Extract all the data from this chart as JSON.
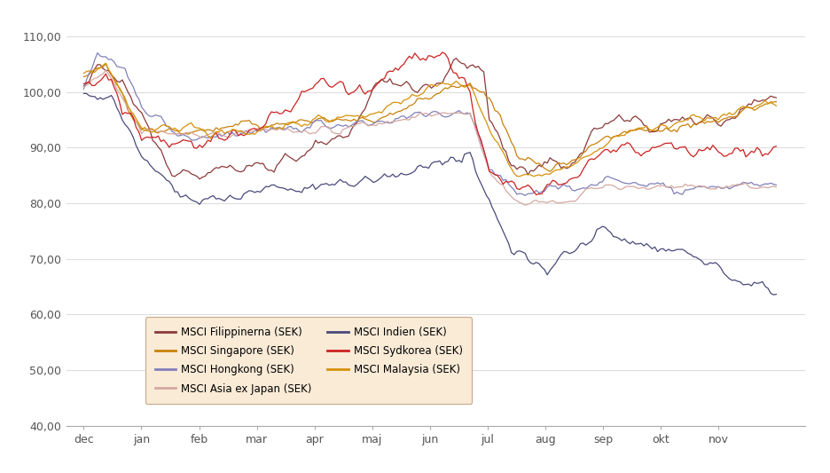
{
  "ylim": [
    40,
    114
  ],
  "yticks": [
    40,
    50,
    60,
    70,
    80,
    90,
    100,
    110
  ],
  "ytick_labels": [
    "40,00",
    "50,00",
    "60,00",
    "70,00",
    "80,00",
    "90,00",
    "100,00",
    "110,00"
  ],
  "months": [
    "dec",
    "jan",
    "feb",
    "mar",
    "apr",
    "maj",
    "jun",
    "jul",
    "aug",
    "sep",
    "okt",
    "nov"
  ],
  "legend_bg": "#FAEBD7",
  "legend_edge": "#C8A888",
  "grid_color": "#DDDDDD",
  "background_color": "#FFFFFF",
  "series": [
    {
      "name": "MSCI Filippinerna (SEK)",
      "color": "#8B3A3A"
    },
    {
      "name": "MSCI Singapore (SEK)",
      "color": "#C8820A"
    },
    {
      "name": "MSCI Hongkong (SEK)",
      "color": "#8080BB"
    },
    {
      "name": "MSCI Asia ex Japan (SEK)",
      "color": "#D4A8A0"
    },
    {
      "name": "MSCI Indien (SEK)",
      "color": "#4A4A7A"
    },
    {
      "name": "MSCI Sydkorea (SEK)",
      "color": "#CC2222"
    },
    {
      "name": "MSCI Malaysia (SEK)",
      "color": "#D4920A"
    }
  ]
}
